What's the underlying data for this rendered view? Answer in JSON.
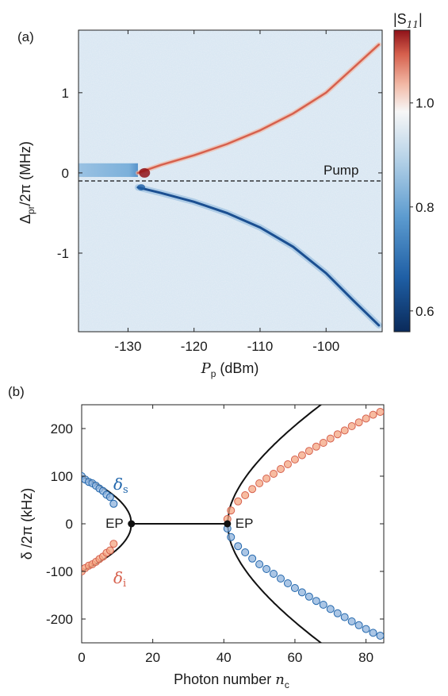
{
  "chart_data": [
    {
      "panel": "(a)",
      "type": "heatmap",
      "xlabel_main": "P",
      "xlabel_sub": "p",
      "xlabel_unit": " (dBm)",
      "ylabel_main": "Δ",
      "ylabel_sub": "pr",
      "ylabel_unit": "/2π (MHz)",
      "xlim": [
        -137.5,
        -91.5
      ],
      "ylim": [
        -1.98,
        1.78
      ],
      "xticks": [
        -130,
        -120,
        -110,
        -100
      ],
      "xtick_labels": [
        "-130",
        "-120",
        "-110",
        "-100"
      ],
      "yticks": [
        1,
        0,
        -1
      ],
      "ytick_labels": [
        "1",
        "0",
        "-1"
      ],
      "colorbar": {
        "label_main": "|S",
        "label_sub": "11",
        "label_end": "|",
        "range": [
          0.56,
          1.14
        ],
        "ticks": [
          1.0,
          0.8,
          0.6
        ],
        "tick_labels": [
          "1.0",
          "0.8",
          "0.6"
        ],
        "colors": [
          "#0a2a5a",
          "#1f5fa5",
          "#5c9bcf",
          "#b9d4e8",
          "#f7f7f7",
          "#f2b9a6",
          "#d6604d",
          "#8f1219"
        ]
      },
      "pump_line": {
        "y": -0.1,
        "label": "Pump"
      },
      "upper_branch": {
        "x": [
          -128.5,
          -125,
          -120,
          -115,
          -110,
          -105,
          -100,
          -96,
          -92
        ],
        "y": [
          0.0,
          0.1,
          0.22,
          0.36,
          0.53,
          0.74,
          1.0,
          1.3,
          1.6
        ]
      },
      "lower_branch": {
        "x": [
          -128.5,
          -125,
          -120,
          -115,
          -110,
          -105,
          -100,
          -96,
          -92
        ],
        "y": [
          -0.18,
          -0.25,
          -0.36,
          -0.5,
          -0.68,
          -0.92,
          -1.25,
          -1.58,
          -1.9
        ]
      },
      "low_power_band": {
        "x": [
          -137.5,
          -128.5
        ],
        "y": [
          -0.05,
          0.12
        ]
      }
    },
    {
      "panel": "(b)",
      "type": "scatter",
      "xlabel": "Photon number ",
      "xlabel_var": "n",
      "xlabel_sub": "c",
      "ylabel": "δ /2π (kHz)",
      "xlim": [
        0,
        85
      ],
      "ylim": [
        -250,
        250
      ],
      "xticks": [
        0,
        20,
        40,
        60,
        80
      ],
      "xtick_labels": [
        "0",
        "20",
        "40",
        "60",
        "80"
      ],
      "yticks": [
        200,
        100,
        0,
        -100,
        -200
      ],
      "ytick_labels": [
        "200",
        "100",
        "0",
        "-100",
        "-200"
      ],
      "ep_points": [
        {
          "x": 14,
          "y": 0,
          "label": "EP"
        },
        {
          "x": 41,
          "y": 0,
          "label": "EP"
        }
      ],
      "series": [
        {
          "name_main": "δ",
          "name_sub": "s",
          "color": "#2166ac",
          "fill": "#8fb3dc",
          "x": [
            0,
            1,
            2,
            3,
            4,
            5,
            6,
            7,
            8,
            9,
            41,
            42,
            44,
            46,
            48,
            50,
            52,
            54,
            56,
            58,
            60,
            62,
            64,
            66,
            68,
            70,
            72,
            74,
            76,
            78,
            80,
            82,
            84
          ],
          "y": [
            100,
            93,
            88,
            85,
            80,
            74,
            69,
            61,
            56,
            42,
            -10,
            -28,
            -47,
            -60,
            -73,
            -85,
            -95,
            -105,
            -115,
            -125,
            -135,
            -144,
            -153,
            -162,
            -170,
            -179,
            -188,
            -196,
            -205,
            -213,
            -221,
            -229,
            -235
          ]
        },
        {
          "name_main": "δ",
          "name_sub": "i",
          "color": "#d6604d",
          "fill": "#f4a582",
          "x": [
            0,
            1,
            2,
            3,
            4,
            5,
            6,
            7,
            8,
            9,
            41,
            42,
            44,
            46,
            48,
            50,
            52,
            54,
            56,
            58,
            60,
            62,
            64,
            66,
            68,
            70,
            72,
            74,
            76,
            78,
            80,
            82,
            84
          ],
          "y": [
            -100,
            -93,
            -88,
            -85,
            -80,
            -74,
            -69,
            -61,
            -56,
            -42,
            10,
            28,
            47,
            60,
            73,
            85,
            95,
            105,
            115,
            125,
            135,
            144,
            153,
            162,
            170,
            179,
            188,
            196,
            205,
            213,
            221,
            229,
            235
          ]
        }
      ]
    }
  ]
}
